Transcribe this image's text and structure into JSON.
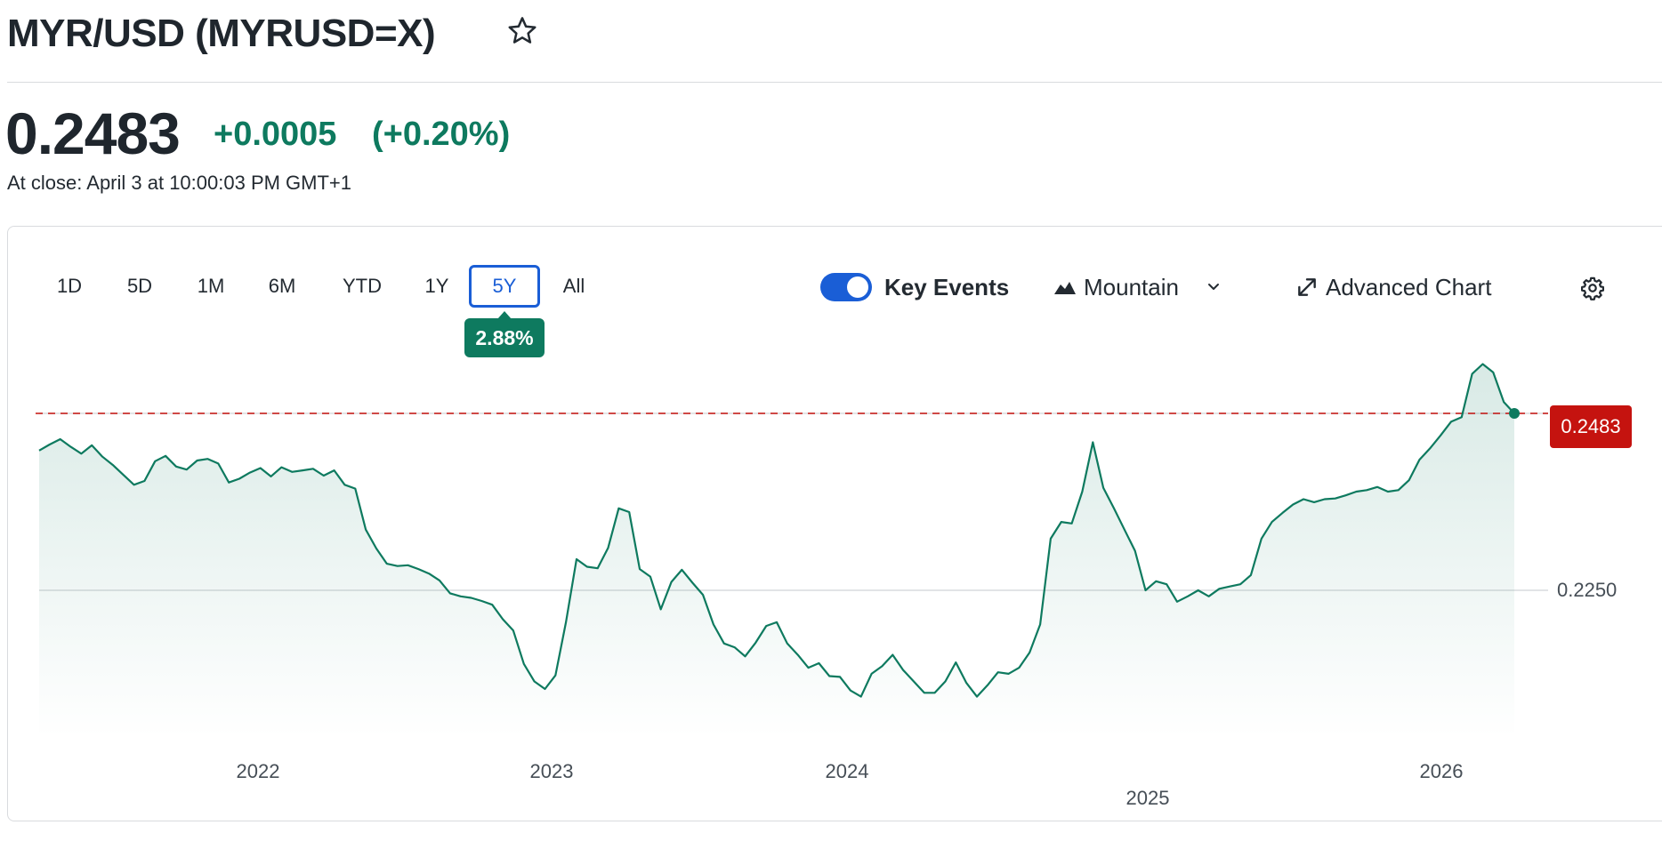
{
  "header": {
    "title": "MYR/USD (MYRUSD=X)",
    "price": "0.2483",
    "change": "+0.0005",
    "change_pct": "(+0.20%)",
    "close_time": "At close: April 3 at 10:00:03 PM GMT+1"
  },
  "toolbar": {
    "ranges": [
      "1D",
      "5D",
      "1M",
      "6M",
      "YTD",
      "1Y",
      "5Y",
      "All"
    ],
    "active_range": "5Y",
    "range_change": "2.88%",
    "key_events_label": "Key Events",
    "key_events_enabled": true,
    "chart_type_label": "Mountain",
    "advanced_label": "Advanced Chart"
  },
  "icons": {
    "favorite": "star-icon",
    "chart_type": "mountain-icon",
    "chart_type_dropdown": "chevron-down-icon",
    "advanced": "expand-icon",
    "settings": "gear-icon"
  },
  "colors": {
    "line": "#0e7a5f",
    "reference_line": "#c5130f",
    "accent": "#1a5ed6"
  },
  "chart_data": {
    "type": "area",
    "title": "",
    "xlabel": "",
    "ylabel": "",
    "x_tick_labels": [
      "2022",
      "2023",
      "2024",
      "2025",
      "2026"
    ],
    "y_tick_labels": [
      "0.2483",
      "0.2250"
    ],
    "current_value": 0.2483,
    "grid": true,
    "series": [
      {
        "values": [
          0.2434,
          0.2442,
          0.2449,
          0.2439,
          0.243,
          0.2441,
          0.2426,
          0.2415,
          0.2402,
          0.2389,
          0.2394,
          0.242,
          0.2427,
          0.2413,
          0.2409,
          0.2421,
          0.2423,
          0.2417,
          0.2392,
          0.2397,
          0.2405,
          0.2411,
          0.24,
          0.2412,
          0.2406,
          0.2408,
          0.241,
          0.2401,
          0.2408,
          0.2389,
          0.2384,
          0.233,
          0.2305,
          0.2285,
          0.2282,
          0.2283,
          0.2278,
          0.2272,
          0.2263,
          0.2246,
          0.2242,
          0.224,
          0.2236,
          0.2231,
          0.2212,
          0.2197,
          0.2153,
          0.213,
          0.212,
          0.2138,
          0.2208,
          0.2291,
          0.2281,
          0.2279,
          0.2306,
          0.2358,
          0.2353,
          0.2278,
          0.2268,
          0.2225,
          0.2261,
          0.2277,
          0.226,
          0.2244,
          0.2205,
          0.218,
          0.2175,
          0.2163,
          0.2181,
          0.2203,
          0.2208,
          0.218,
          0.2165,
          0.2148,
          0.2154,
          0.2137,
          0.2136,
          0.2118,
          0.211,
          0.214,
          0.215,
          0.2165,
          0.2145,
          0.213,
          0.2115,
          0.2115,
          0.213,
          0.2155,
          0.2128,
          0.211,
          0.2125,
          0.2142,
          0.214,
          0.2148,
          0.2168,
          0.2205,
          0.2318,
          0.234,
          0.2338,
          0.238,
          0.2445,
          0.2385,
          0.2358,
          0.233,
          0.2302,
          0.225,
          0.2262,
          0.2258,
          0.2235,
          0.2242,
          0.225,
          0.2242,
          0.2252,
          0.2255,
          0.2258,
          0.227,
          0.2318,
          0.234,
          0.2352,
          0.2363,
          0.237,
          0.2366,
          0.237,
          0.2371,
          0.2375,
          0.238,
          0.2382,
          0.2386,
          0.238,
          0.2382,
          0.2395,
          0.2422,
          0.2437,
          0.2454,
          0.2472,
          0.2478,
          0.2535,
          0.2548,
          0.2537,
          0.2498,
          0.2483
        ]
      }
    ]
  }
}
